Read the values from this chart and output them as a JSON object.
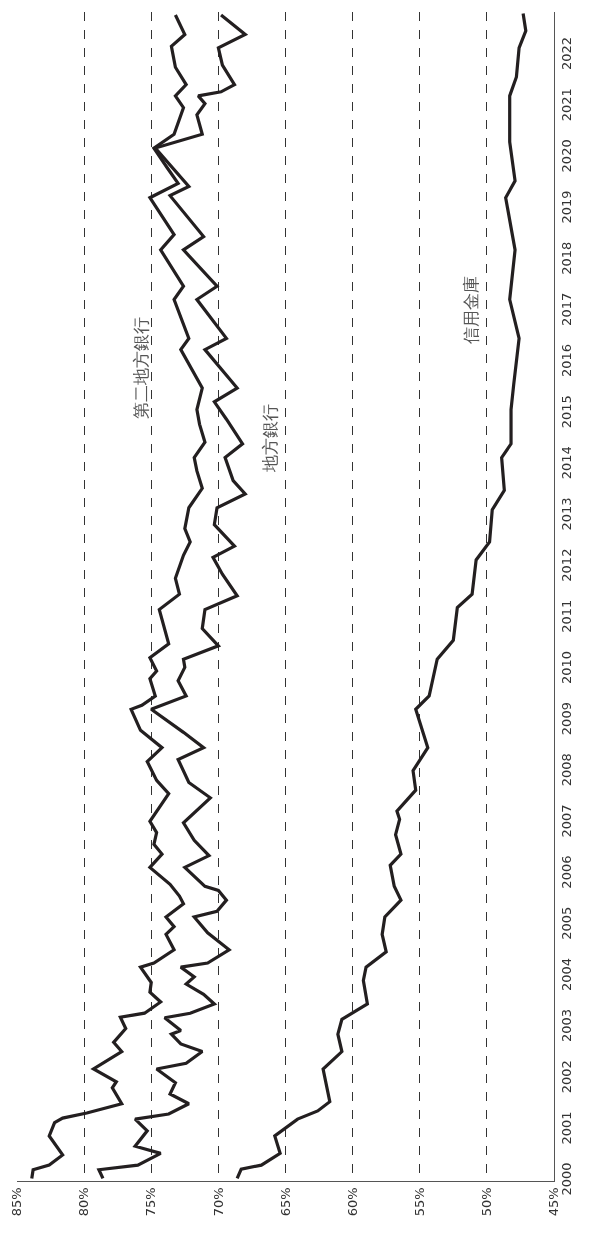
{
  "chart_data": {
    "type": "line",
    "orientation": "horizontal",
    "grid": "x",
    "legend": false,
    "line_style": "solid",
    "ylim": [
      2000,
      2022.85
    ],
    "yticks": [
      2000,
      2001,
      2002,
      2003,
      2004,
      2005,
      2006,
      2007,
      2008,
      2009,
      2010,
      2011,
      2012,
      2013,
      2014,
      2015,
      2016,
      2017,
      2018,
      2019,
      2020,
      2021,
      2022
    ],
    "xlim": [
      85,
      45
    ],
    "xticks": [
      {
        "value": 85,
        "label": "85%"
      },
      {
        "value": 80,
        "label": "80%"
      },
      {
        "value": 75,
        "label": "75%"
      },
      {
        "value": 70,
        "label": "70%"
      },
      {
        "value": 65,
        "label": "65%"
      },
      {
        "value": 60,
        "label": "60%"
      },
      {
        "value": 55,
        "label": "55%"
      },
      {
        "value": 50,
        "label": "50%"
      },
      {
        "value": 45,
        "label": "45%"
      }
    ],
    "series": [
      {
        "name": "第二地方銀行",
        "color": "#231f20",
        "x": [
          2000.05,
          2000.22,
          2000.31,
          2000.51,
          2000.88,
          2001.14,
          2001.23,
          2001.33,
          2001.51,
          2001.82,
          2001.94,
          2002.19,
          2002.53,
          2002.71,
          2002.98,
          2003.2,
          2003.28,
          2003.5,
          2003.69,
          2003.88,
          2004.18,
          2004.26,
          2004.52,
          2004.82,
          2004.97,
          2005.16,
          2005.42,
          2005.57,
          2005.8,
          2006.13,
          2006.39,
          2006.58,
          2006.81,
          2007.03,
          2007.57,
          2007.83,
          2008.2,
          2008.47,
          2008.81,
          2009.22,
          2009.3,
          2009.48,
          2009.82,
          2009.97,
          2010.23,
          2010.5,
          2011.17,
          2011.47,
          2011.78,
          2012.23,
          2012.49,
          2012.75,
          2013.16,
          2013.54,
          2013.88,
          2014.14,
          2014.44,
          2014.79,
          2015.08,
          2015.5,
          2016.25,
          2016.47,
          2017.23,
          2017.49,
          2018.2,
          2018.5,
          2019.22,
          2019.5,
          2019.8,
          2020.19,
          2020.46,
          2020.98,
          2021.21,
          2021.43,
          2021.77,
          2022.18,
          2022.41,
          2022.79
        ],
        "values": [
          83.9,
          83.8,
          82.6,
          81.6,
          82.6,
          82.2,
          81.6,
          79.8,
          77.2,
          77.9,
          77.6,
          79.3,
          77.2,
          77.8,
          76.9,
          77.3,
          75.5,
          74.3,
          75.1,
          75.0,
          75.8,
          74.8,
          73.3,
          73.9,
          73.3,
          73.9,
          72.6,
          72.9,
          73.6,
          75.1,
          74.2,
          74.8,
          74.6,
          75.1,
          73.7,
          74.6,
          75.3,
          74.2,
          75.8,
          76.5,
          75.7,
          74.7,
          75.1,
          74.6,
          75.1,
          73.7,
          74.4,
          72.9,
          73.2,
          72.6,
          72.1,
          72.5,
          72.2,
          71.2,
          71.6,
          71.8,
          71.0,
          71.4,
          71.6,
          71.2,
          72.8,
          72.2,
          73.3,
          72.6,
          74.3,
          73.3,
          75.1,
          73.0,
          73.8,
          74.8,
          73.3,
          72.6,
          73.2,
          72.4,
          73.2,
          73.5,
          72.5,
          73.2
        ]
      },
      {
        "name": "地方銀行",
        "color": "#231f20",
        "x": [
          2000.05,
          2000.22,
          2000.31,
          2000.54,
          2000.68,
          2000.98,
          2001.21,
          2001.31,
          2001.51,
          2001.7,
          2001.92,
          2002.19,
          2002.3,
          2002.53,
          2002.68,
          2002.87,
          2002.94,
          2003.19,
          2003.28,
          2003.46,
          2003.65,
          2003.85,
          2003.99,
          2004.18,
          2004.26,
          2004.52,
          2004.85,
          2005.16,
          2005.27,
          2005.49,
          2005.68,
          2005.76,
          2006.13,
          2006.36,
          2006.66,
          2007.0,
          2007.49,
          2007.79,
          2008.24,
          2008.47,
          2008.77,
          2009.22,
          2009.48,
          2009.78,
          2010.04,
          2010.2,
          2010.46,
          2010.8,
          2011.17,
          2011.44,
          2011.86,
          2012.19,
          2012.41,
          2012.83,
          2013.16,
          2013.43,
          2013.69,
          2014.14,
          2014.41,
          2014.89,
          2015.23,
          2015.5,
          2016.25,
          2016.47,
          2017.23,
          2017.49,
          2018.2,
          2018.46,
          2019.26,
          2019.44,
          2020.19,
          2020.46,
          2020.84,
          2021.06,
          2021.21,
          2021.29,
          2021.43,
          2021.81,
          2022.15,
          2022.41,
          2022.79
        ],
        "values": [
          78.6,
          78.9,
          76.0,
          74.3,
          76.2,
          75.3,
          76.2,
          73.7,
          72.2,
          73.6,
          73.2,
          74.6,
          72.4,
          71.2,
          72.8,
          73.5,
          72.8,
          74.0,
          72.1,
          70.3,
          71.1,
          72.4,
          71.8,
          72.8,
          70.8,
          69.2,
          70.8,
          71.8,
          70.1,
          69.4,
          70.0,
          71.0,
          72.5,
          70.7,
          71.8,
          72.6,
          70.6,
          72.2,
          73.0,
          71.1,
          72.6,
          75.0,
          72.4,
          73.0,
          72.5,
          72.6,
          70.0,
          71.2,
          71.0,
          68.6,
          69.7,
          70.4,
          68.8,
          70.3,
          70.1,
          68.0,
          68.9,
          69.5,
          68.2,
          69.4,
          70.3,
          68.6,
          71.0,
          69.4,
          71.6,
          70.1,
          72.6,
          71.1,
          73.6,
          72.2,
          74.7,
          71.2,
          71.6,
          71.0,
          71.5,
          69.8,
          68.8,
          69.7,
          70.0,
          68.0,
          69.8
        ]
      },
      {
        "name": "信用金庫",
        "color": "#231f20",
        "x": [
          2000.05,
          2000.23,
          2000.31,
          2000.54,
          2000.88,
          2001.21,
          2001.37,
          2001.55,
          2002.19,
          2002.53,
          2002.87,
          2003.16,
          2003.46,
          2003.92,
          2004.18,
          2004.48,
          2004.82,
          2005.16,
          2005.49,
          2005.76,
          2006.17,
          2006.39,
          2006.77,
          2007.07,
          2007.23,
          2007.64,
          2008.02,
          2008.47,
          2009.22,
          2009.48,
          2010.2,
          2010.57,
          2011.21,
          2011.47,
          2012.14,
          2012.49,
          2013.12,
          2013.5,
          2014.14,
          2014.41,
          2015.08,
          2015.57,
          2016.47,
          2017.23,
          2018.2,
          2019.22,
          2019.55,
          2020.31,
          2021.21,
          2021.58,
          2022.15,
          2022.48,
          2022.82
        ],
        "values": [
          68.6,
          68.3,
          66.8,
          65.4,
          65.8,
          64.1,
          62.6,
          61.7,
          62.2,
          60.8,
          61.1,
          60.8,
          58.9,
          59.2,
          59.0,
          57.5,
          57.8,
          57.6,
          56.4,
          56.9,
          57.2,
          56.4,
          56.8,
          56.5,
          56.7,
          55.3,
          55.5,
          54.4,
          55.3,
          54.3,
          53.7,
          52.5,
          52.2,
          51.1,
          50.8,
          49.8,
          49.6,
          48.7,
          48.9,
          48.2,
          48.2,
          48.0,
          47.6,
          48.3,
          47.9,
          48.6,
          47.9,
          48.3,
          48.3,
          47.8,
          47.6,
          47.1,
          47.3
        ]
      }
    ]
  }
}
